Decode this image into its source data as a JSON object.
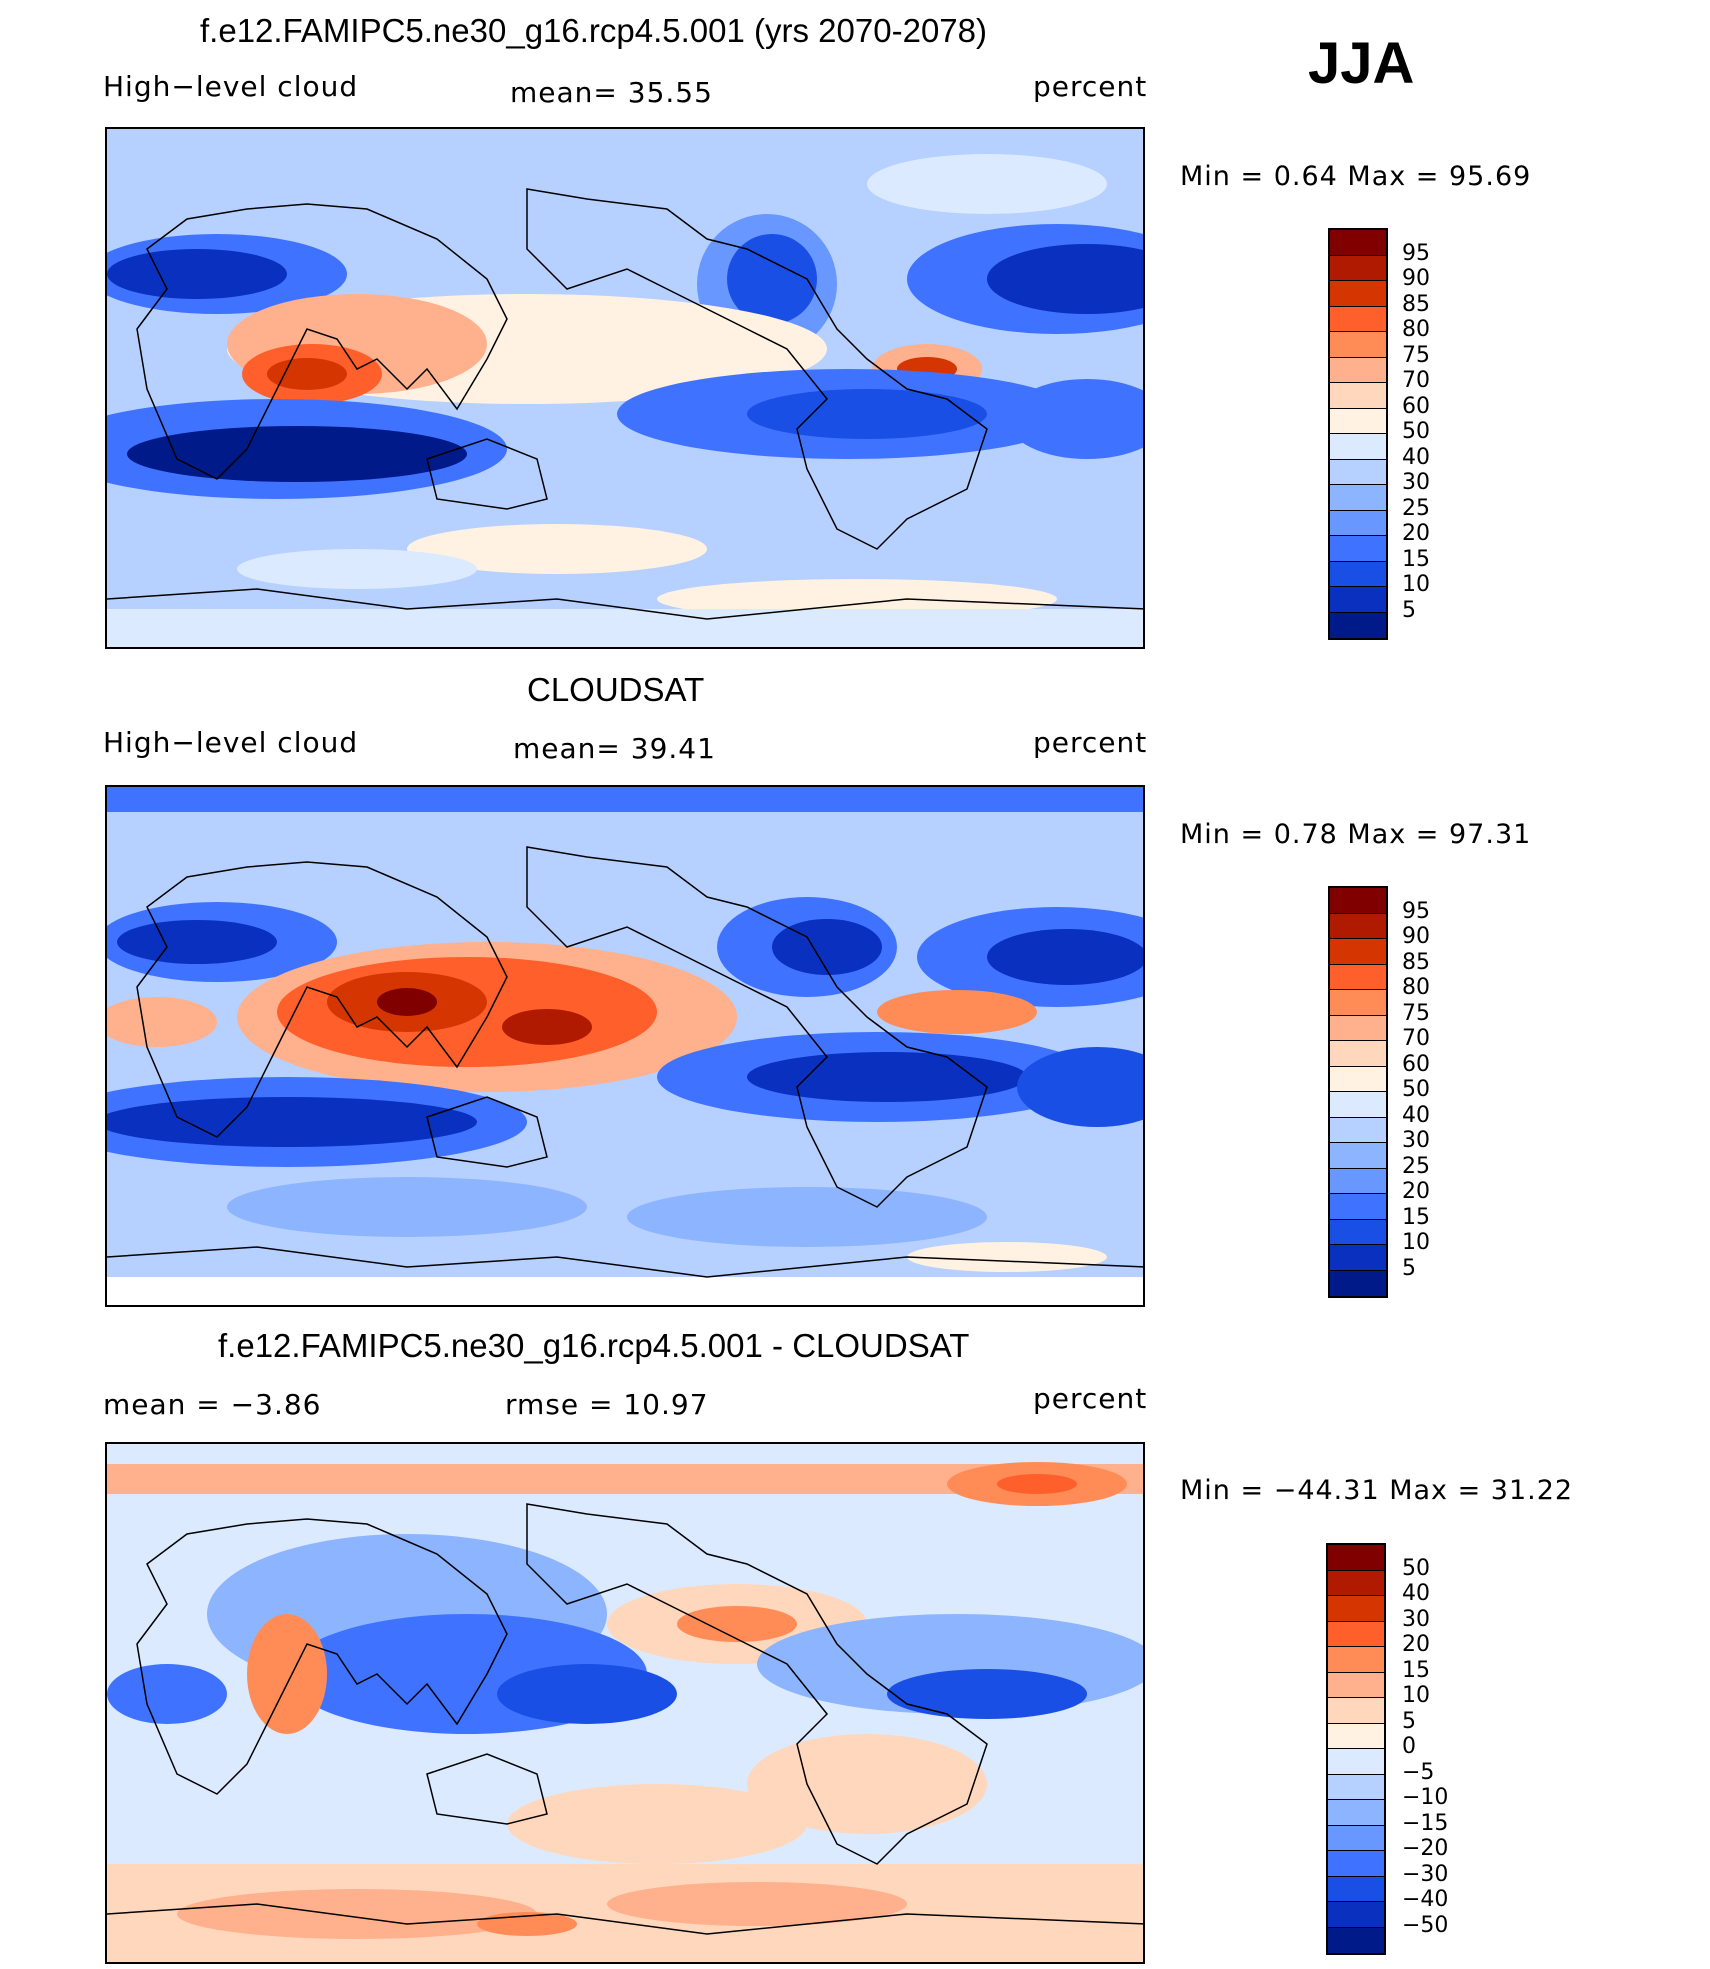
{
  "header": {
    "season": "JJA"
  },
  "panels": [
    {
      "title": "f.e12.FAMIPC5.ne30_g16.rcp4.5.001 (yrs 2070-2078)",
      "left_label": "High−level cloud",
      "center_label": "mean=   35.55",
      "right_label": "percent",
      "minmax": "Min  =     0.64  Max  =    95.69",
      "colorbar": {
        "colors": [
          "#800000",
          "#b01a00",
          "#d53500",
          "#ff5f2a",
          "#ff8c57",
          "#ffb08c",
          "#ffd7bd",
          "#fff2e3",
          "#dbeaff",
          "#b6d0ff",
          "#8db4ff",
          "#6797ff",
          "#3f73ff",
          "#1a4fe6",
          "#0a30c0",
          "#001a8a"
        ],
        "labels": [
          "95",
          "90",
          "85",
          "80",
          "75",
          "70",
          "60",
          "50",
          "40",
          "30",
          "25",
          "20",
          "15",
          "10",
          "5"
        ]
      }
    },
    {
      "title": "CLOUDSAT",
      "left_label": "High−level cloud",
      "center_label": "mean=   39.41",
      "right_label": "percent",
      "minmax": "Min  =     0.78  Max  =    97.31",
      "colorbar": {
        "colors": [
          "#800000",
          "#b01a00",
          "#d53500",
          "#ff5f2a",
          "#ff8c57",
          "#ffb08c",
          "#ffd7bd",
          "#fff2e3",
          "#dbeaff",
          "#b6d0ff",
          "#8db4ff",
          "#6797ff",
          "#3f73ff",
          "#1a4fe6",
          "#0a30c0",
          "#001a8a"
        ],
        "labels": [
          "95",
          "90",
          "85",
          "80",
          "75",
          "70",
          "60",
          "50",
          "40",
          "30",
          "25",
          "20",
          "15",
          "10",
          "5"
        ]
      }
    },
    {
      "title": "f.e12.FAMIPC5.ne30_g16.rcp4.5.001 - CLOUDSAT",
      "left_label": "mean  =   −3.86",
      "center_label": "rmse  =    10.97",
      "right_label": "percent",
      "minmax": "Min  = −44.31  Max  =    31.22",
      "colorbar": {
        "colors": [
          "#800000",
          "#b01a00",
          "#d53500",
          "#ff5f2a",
          "#ff8c57",
          "#ffb08c",
          "#ffd7bd",
          "#fff2e3",
          "#dbeaff",
          "#b6d0ff",
          "#8db4ff",
          "#6797ff",
          "#3f73ff",
          "#1a4fe6",
          "#0a30c0",
          "#001a8a"
        ],
        "labels": [
          "50",
          "40",
          "30",
          "20",
          "15",
          "10",
          "5",
          "0",
          "−5",
          "−10",
          "−15",
          "−20",
          "−30",
          "−40",
          "−50"
        ]
      }
    }
  ]
}
